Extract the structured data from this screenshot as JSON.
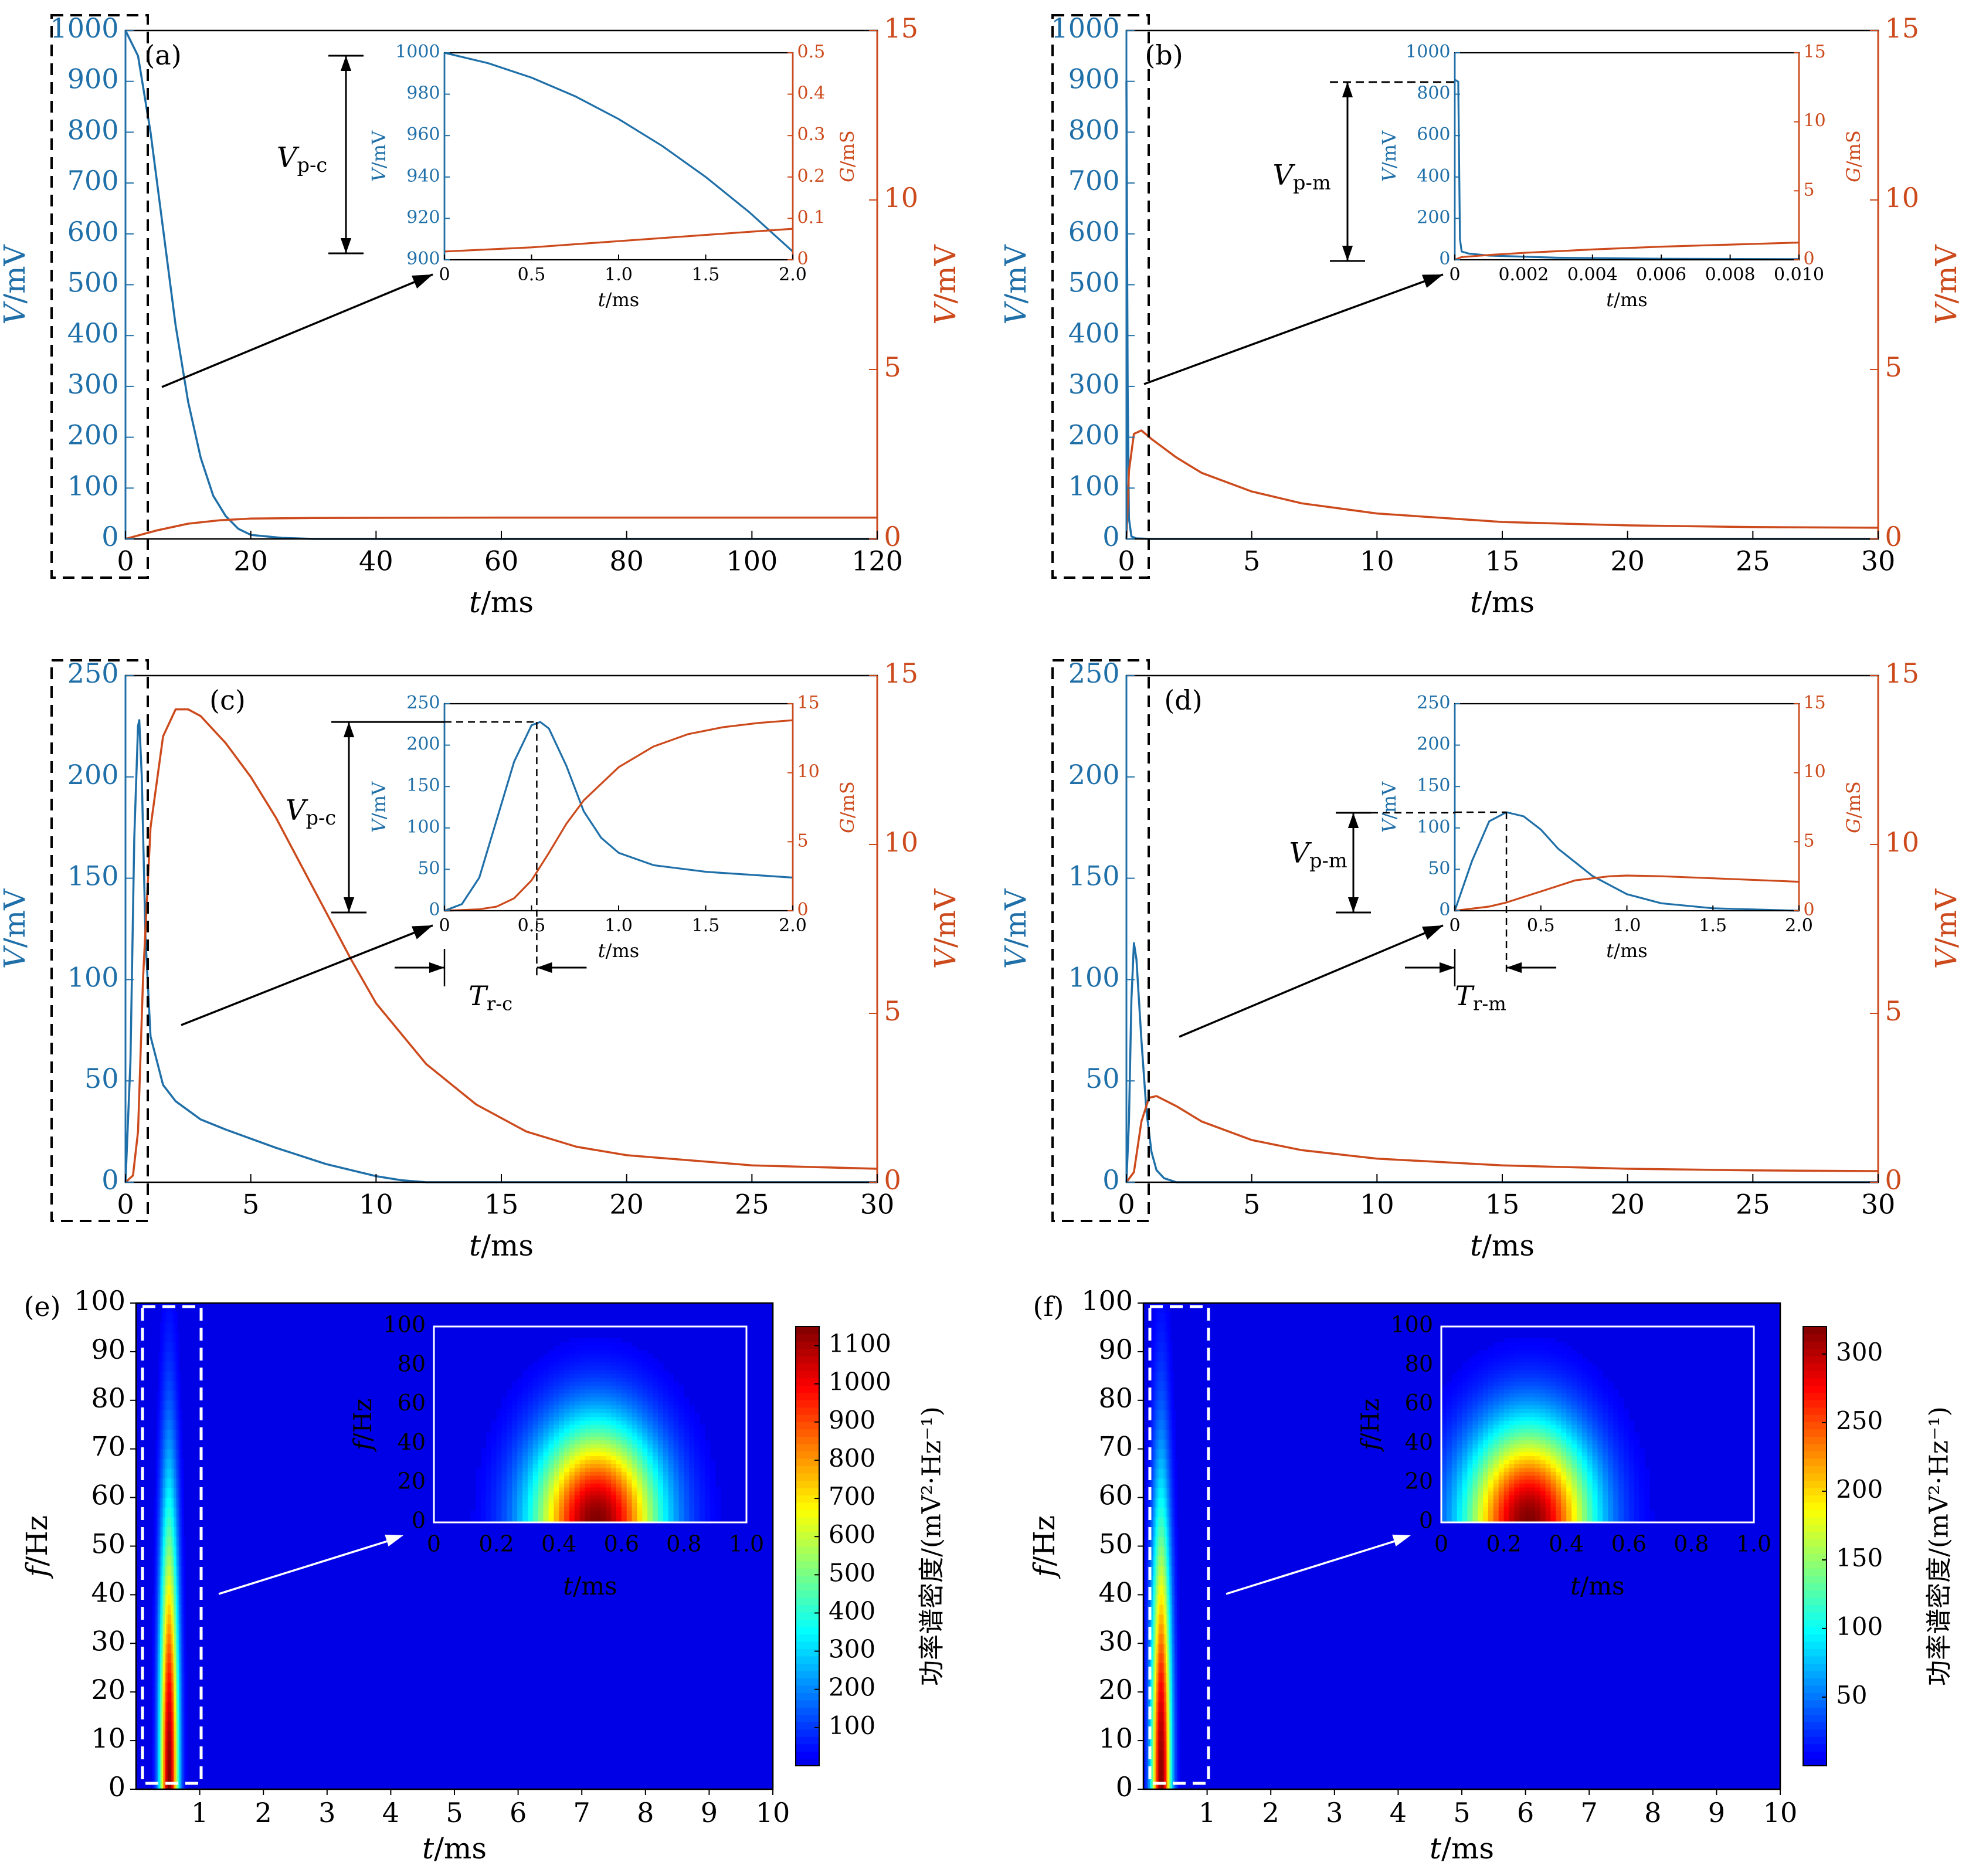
{
  "figure": {
    "colors": {
      "blue": "#1f6fa8",
      "orange": "#cc4a1c",
      "black": "#000000"
    }
  },
  "chart_data": [
    {
      "panel": "(a)",
      "type": "line",
      "xlabel": "t/ms",
      "ylabel": "V/mV",
      "y2label": "V/mV",
      "xlim": [
        0,
        120
      ],
      "ylim": [
        0,
        1000
      ],
      "y2lim": [
        0,
        15
      ],
      "xticks": [
        0,
        20,
        40,
        60,
        80,
        100,
        120
      ],
      "yticks": [
        0,
        100,
        200,
        300,
        400,
        500,
        600,
        700,
        800,
        900,
        1000
      ],
      "y2ticks": [
        0,
        5,
        10,
        15
      ],
      "series": [
        {
          "axis": "left",
          "color": "#1f6fa8",
          "x": [
            0,
            2,
            4,
            6,
            8,
            10,
            12,
            14,
            16,
            18,
            20,
            25,
            30,
            40,
            120
          ],
          "y": [
            1000,
            950,
            800,
            610,
            420,
            270,
            160,
            85,
            45,
            20,
            8,
            2,
            0,
            0,
            0
          ]
        },
        {
          "axis": "right",
          "color": "#cc4a1c",
          "x": [
            0,
            5,
            10,
            15,
            20,
            30,
            60,
            120
          ],
          "y": [
            0,
            0.25,
            0.45,
            0.55,
            0.6,
            0.62,
            0.63,
            0.63
          ]
        }
      ],
      "annotation": {
        "label_main": "V",
        "label_sub": "p-c"
      },
      "inset": {
        "xlabel": "t/ms",
        "ylabel": "V/mV",
        "y2label": "G/mS",
        "xlim": [
          0,
          2
        ],
        "ylim": [
          900,
          1000
        ],
        "y2lim": [
          0,
          0.5
        ],
        "xticks": [
          0,
          0.5,
          1.0,
          1.5,
          2.0
        ],
        "xticklabels": [
          "0",
          "0.5",
          "1.0",
          "1.5",
          "2.0"
        ],
        "yticks": [
          900,
          920,
          940,
          960,
          980,
          1000
        ],
        "y2ticks": [
          0,
          0.1,
          0.2,
          0.3,
          0.4,
          0.5
        ],
        "y2ticklabels": [
          "0",
          "0.1",
          "0.2",
          "0.3",
          "0.4",
          "0.5"
        ],
        "series": [
          {
            "axis": "left",
            "color": "#1f6fa8",
            "x": [
              0,
              0.25,
              0.5,
              0.75,
              1.0,
              1.25,
              1.5,
              1.75,
              2.0
            ],
            "y": [
              1000,
              995,
              988,
              979,
              968,
              955,
              940,
              923,
              904
            ]
          },
          {
            "axis": "right",
            "color": "#cc4a1c",
            "x": [
              0,
              0.5,
              1.0,
              1.5,
              2.0
            ],
            "y": [
              0.02,
              0.03,
              0.045,
              0.06,
              0.075
            ]
          }
        ]
      }
    },
    {
      "panel": "(b)",
      "type": "line",
      "xlabel": "t/ms",
      "ylabel": "V/mV",
      "y2label": "V/mV",
      "xlim": [
        0,
        30
      ],
      "ylim": [
        0,
        1000
      ],
      "y2lim": [
        0,
        15
      ],
      "xticks": [
        0,
        5,
        10,
        15,
        20,
        25,
        30
      ],
      "yticks": [
        0,
        100,
        200,
        300,
        400,
        500,
        600,
        700,
        800,
        900,
        1000
      ],
      "y2ticks": [
        0,
        5,
        10,
        15
      ],
      "series": [
        {
          "axis": "left",
          "color": "#1f6fa8",
          "x": [
            0,
            0.05,
            0.1,
            0.2,
            0.4,
            1,
            30
          ],
          "y": [
            900,
            300,
            40,
            5,
            1,
            0,
            0
          ]
        },
        {
          "axis": "right",
          "color": "#cc4a1c",
          "x": [
            0,
            0.1,
            0.3,
            0.6,
            1,
            2,
            3,
            5,
            7,
            10,
            15,
            20,
            25,
            30
          ],
          "y": [
            0,
            2.0,
            3.1,
            3.2,
            2.95,
            2.4,
            1.95,
            1.4,
            1.05,
            0.75,
            0.5,
            0.4,
            0.35,
            0.33
          ]
        }
      ],
      "annotation": {
        "label_main": "V",
        "label_sub": "p-m"
      },
      "inset": {
        "xlabel": "t/ms",
        "ylabel": "V/mV",
        "y2label": "G/mS",
        "xlim": [
          0,
          0.01
        ],
        "ylim": [
          0,
          1000
        ],
        "y2lim": [
          0,
          15
        ],
        "xticks": [
          0,
          0.002,
          0.004,
          0.006,
          0.008,
          0.01
        ],
        "xticklabels": [
          "0",
          "0.002",
          "0.004",
          "0.006",
          "0.008",
          "0.010"
        ],
        "yticks": [
          0,
          200,
          400,
          600,
          800,
          1000
        ],
        "y2ticks": [
          0,
          5,
          10,
          15
        ],
        "y2ticklabels": [
          "0",
          "5",
          "10",
          "15"
        ],
        "series": [
          {
            "axis": "left",
            "color": "#1f6fa8",
            "x": [
              0,
              0.0001,
              0.00015,
              0.0002,
              0.0004,
              0.001,
              0.003,
              0.006,
              0.01
            ],
            "y": [
              870,
              860,
              100,
              40,
              30,
              20,
              10,
              5,
              3
            ]
          },
          {
            "axis": "right",
            "color": "#cc4a1c",
            "x": [
              0,
              0.0002,
              0.001,
              0.002,
              0.004,
              0.006,
              0.008,
              0.01
            ],
            "y": [
              0,
              0.2,
              0.35,
              0.5,
              0.75,
              0.95,
              1.1,
              1.25
            ]
          }
        ]
      }
    },
    {
      "panel": "(c)",
      "type": "line",
      "xlabel": "t/ms",
      "ylabel": "V/mV",
      "y2label": "V/mV",
      "xlim": [
        0,
        30
      ],
      "ylim": [
        0,
        250
      ],
      "y2lim": [
        0,
        15
      ],
      "xticks": [
        0,
        5,
        10,
        15,
        20,
        25,
        30
      ],
      "yticks": [
        0,
        50,
        100,
        150,
        200,
        250
      ],
      "y2ticks": [
        0,
        5,
        10,
        15
      ],
      "series": [
        {
          "axis": "left",
          "color": "#1f6fa8",
          "x": [
            0,
            0.2,
            0.35,
            0.5,
            0.55,
            0.65,
            0.8,
            1.0,
            1.5,
            2,
            3,
            4,
            6,
            8,
            10,
            11,
            12,
            13,
            30
          ],
          "y": [
            0,
            60,
            170,
            225,
            228,
            200,
            120,
            72,
            48,
            40,
            31,
            26,
            17,
            9,
            3,
            1,
            0,
            0,
            0
          ]
        },
        {
          "axis": "right",
          "color": "#cc4a1c",
          "x": [
            0,
            0.3,
            0.5,
            0.7,
            1,
            1.5,
            2,
            2.5,
            3,
            4,
            5,
            6,
            7,
            8,
            9,
            10,
            12,
            14,
            16,
            18,
            20,
            25,
            30
          ],
          "y": [
            0,
            0.2,
            1.5,
            6,
            10.5,
            13.2,
            14.0,
            14.0,
            13.8,
            13.0,
            12.0,
            10.8,
            9.4,
            8.0,
            6.6,
            5.3,
            3.5,
            2.3,
            1.5,
            1.05,
            0.8,
            0.5,
            0.4
          ]
        }
      ],
      "annotation": {
        "label_main": "V",
        "label_sub": "p-c",
        "time_main": "T",
        "time_sub": "r-c"
      },
      "inset": {
        "xlabel": "t/ms",
        "ylabel": "V/mV",
        "y2label": "G/mS",
        "xlim": [
          0,
          2
        ],
        "ylim": [
          0,
          250
        ],
        "y2lim": [
          0,
          15
        ],
        "xticks": [
          0,
          0.5,
          1.0,
          1.5,
          2.0
        ],
        "xticklabels": [
          "0",
          "0.5",
          "1.0",
          "1.5",
          "2.0"
        ],
        "yticks": [
          0,
          50,
          100,
          150,
          200,
          250
        ],
        "y2ticks": [
          0,
          5,
          10,
          15
        ],
        "y2ticklabels": [
          "0",
          "5",
          "10",
          "15"
        ],
        "series": [
          {
            "axis": "left",
            "color": "#1f6fa8",
            "x": [
              0,
              0.1,
              0.2,
              0.3,
              0.4,
              0.5,
              0.55,
              0.6,
              0.7,
              0.8,
              0.9,
              1.0,
              1.2,
              1.5,
              2.0
            ],
            "y": [
              0,
              8,
              40,
              110,
              180,
              224,
              228,
              220,
              175,
              120,
              88,
              70,
              55,
              47,
              40
            ]
          },
          {
            "axis": "right",
            "color": "#cc4a1c",
            "x": [
              0,
              0.2,
              0.3,
              0.4,
              0.5,
              0.6,
              0.7,
              0.8,
              1.0,
              1.2,
              1.4,
              1.6,
              1.8,
              2.0
            ],
            "y": [
              0,
              0.1,
              0.3,
              0.9,
              2.2,
              4.2,
              6.3,
              8.0,
              10.4,
              11.9,
              12.8,
              13.3,
              13.6,
              13.8
            ]
          }
        ]
      }
    },
    {
      "panel": "(d)",
      "type": "line",
      "xlabel": "t/ms",
      "ylabel": "V/mV",
      "y2label": "V/mV",
      "xlim": [
        0,
        30
      ],
      "ylim": [
        0,
        250
      ],
      "y2lim": [
        0,
        15
      ],
      "xticks": [
        0,
        5,
        10,
        15,
        20,
        25,
        30
      ],
      "yticks": [
        0,
        50,
        100,
        150,
        200,
        250
      ],
      "y2ticks": [
        0,
        5,
        10,
        15
      ],
      "series": [
        {
          "axis": "left",
          "color": "#1f6fa8",
          "x": [
            0,
            0.1,
            0.2,
            0.3,
            0.4,
            0.6,
            0.8,
            1.0,
            1.2,
            1.5,
            2,
            30
          ],
          "y": [
            0,
            30,
            90,
            118,
            110,
            70,
            35,
            15,
            6,
            2,
            0,
            0
          ]
        },
        {
          "axis": "right",
          "color": "#cc4a1c",
          "x": [
            0,
            0.3,
            0.6,
            0.9,
            1.2,
            2,
            3,
            5,
            7,
            10,
            15,
            20,
            25,
            30
          ],
          "y": [
            0,
            0.3,
            1.8,
            2.5,
            2.55,
            2.25,
            1.8,
            1.25,
            0.95,
            0.7,
            0.5,
            0.4,
            0.35,
            0.33
          ]
        }
      ],
      "annotation": {
        "label_main": "V",
        "label_sub": "p-m",
        "time_main": "T",
        "time_sub": "r-m"
      },
      "inset": {
        "xlabel": "t/ms",
        "ylabel": "V/mV",
        "y2label": "G/mS",
        "xlim": [
          0,
          2
        ],
        "ylim": [
          0,
          250
        ],
        "y2lim": [
          0,
          15
        ],
        "xticks": [
          0,
          0.5,
          1.0,
          1.5,
          2.0
        ],
        "xticklabels": [
          "0",
          "0.5",
          "1.0",
          "1.5",
          "2.0"
        ],
        "yticks": [
          0,
          50,
          100,
          150,
          200,
          250
        ],
        "y2ticks": [
          0,
          5,
          10,
          15
        ],
        "y2ticklabels": [
          "0",
          "5",
          "10",
          "15"
        ],
        "series": [
          {
            "axis": "left",
            "color": "#1f6fa8",
            "x": [
              0,
              0.1,
              0.2,
              0.3,
              0.4,
              0.5,
              0.6,
              0.8,
              1.0,
              1.2,
              1.5,
              2.0
            ],
            "y": [
              0,
              60,
              108,
              119,
              114,
              98,
              75,
              42,
              20,
              9,
              3,
              0
            ]
          },
          {
            "axis": "right",
            "color": "#cc4a1c",
            "x": [
              0,
              0.2,
              0.3,
              0.5,
              0.7,
              0.9,
              1.0,
              1.2,
              1.5,
              2.0
            ],
            "y": [
              0,
              0.3,
              0.6,
              1.4,
              2.2,
              2.5,
              2.55,
              2.5,
              2.35,
              2.1
            ]
          }
        ]
      }
    },
    {
      "panel": "(e)",
      "type": "heatmap",
      "xlabel": "t/ms",
      "ylabel": "f/Hz",
      "xlim": [
        0,
        10
      ],
      "ylim": [
        0,
        100
      ],
      "xticks": [
        1,
        2,
        3,
        4,
        5,
        6,
        7,
        8,
        9,
        10
      ],
      "yticks": [
        0,
        10,
        20,
        30,
        40,
        50,
        60,
        70,
        80,
        90,
        100
      ],
      "colorbar_label": "功率谱密度/(mV²·Hz⁻¹)",
      "colorbar_range": [
        0,
        1150
      ],
      "colorbar_ticks": [
        100,
        200,
        300,
        400,
        500,
        600,
        700,
        800,
        900,
        1000,
        1100
      ],
      "peak": {
        "t": 0.52,
        "f": 0,
        "value": 1150
      },
      "inset": {
        "xlabel": "t/ms",
        "ylabel": "f/Hz",
        "xlim": [
          0,
          1
        ],
        "ylim": [
          0,
          100
        ],
        "xticks": [
          0,
          0.2,
          0.4,
          0.6,
          0.8,
          1.0
        ],
        "xticklabels": [
          "0",
          "0.2",
          "0.4",
          "0.6",
          "0.8",
          "1.0"
        ],
        "yticks": [
          0,
          20,
          40,
          60,
          80,
          100
        ]
      }
    },
    {
      "panel": "(f)",
      "type": "heatmap",
      "xlabel": "t/ms",
      "ylabel": "f/Hz",
      "xlim": [
        0,
        10
      ],
      "ylim": [
        0,
        100
      ],
      "xticks": [
        1,
        2,
        3,
        4,
        5,
        6,
        7,
        8,
        9,
        10
      ],
      "yticks": [
        0,
        10,
        20,
        30,
        40,
        50,
        60,
        70,
        80,
        90,
        100
      ],
      "colorbar_label": "功率谱密度/(mV²·Hz⁻¹)",
      "colorbar_range": [
        0,
        320
      ],
      "colorbar_ticks": [
        50,
        100,
        150,
        200,
        250,
        300
      ],
      "peak": {
        "t": 0.28,
        "f": 0,
        "value": 320
      },
      "inset": {
        "xlabel": "t/ms",
        "ylabel": "f/Hz",
        "xlim": [
          0,
          1
        ],
        "ylim": [
          0,
          100
        ],
        "xticks": [
          0,
          0.2,
          0.4,
          0.6,
          0.8,
          1.0
        ],
        "xticklabels": [
          "0",
          "0.2",
          "0.4",
          "0.6",
          "0.8",
          "1.0"
        ],
        "yticks": [
          0,
          20,
          40,
          60,
          80,
          100
        ]
      }
    }
  ]
}
